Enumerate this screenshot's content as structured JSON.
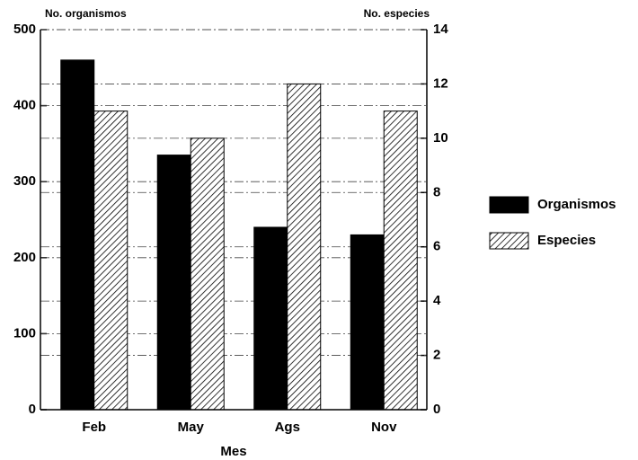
{
  "chart_data": {
    "type": "bar",
    "categories": [
      "Feb",
      "May",
      "Ags",
      "Nov"
    ],
    "series": [
      {
        "name": "Organismos",
        "color": "#000000",
        "values": [
          460,
          335,
          240,
          230
        ]
      },
      {
        "name": "Especies",
        "color": "#000000",
        "hatch": true,
        "axis": "y2",
        "values": [
          11,
          10,
          12,
          11
        ]
      }
    ],
    "ylabel": "No. organismos",
    "y2label": "No. especies",
    "xlabel": "Mes",
    "ylim": [
      0,
      500
    ],
    "yticks": [
      0,
      100,
      200,
      300,
      400,
      500
    ],
    "y2lim": [
      0,
      14
    ],
    "y2ticks": [
      0,
      2,
      4,
      6,
      8,
      10,
      12,
      14
    ],
    "grid": true,
    "legend": "right"
  }
}
